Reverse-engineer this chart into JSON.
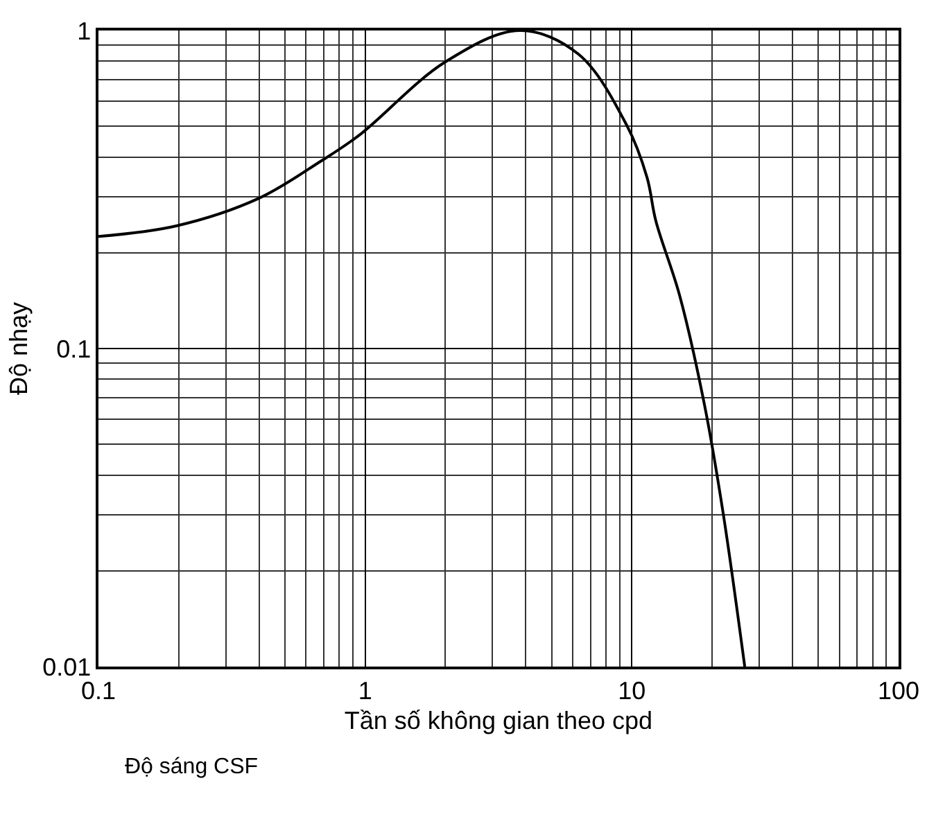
{
  "chart_data": {
    "type": "line",
    "xlabel": "Tần số không gian theo cpd",
    "ylabel": "Độ nhạy",
    "annotations": [
      "Độ sáng CSF"
    ],
    "log": "xy",
    "grid": true,
    "marker": "none",
    "line_style": "solid",
    "xlim": [
      0.1,
      100
    ],
    "xticks": [
      0.1,
      1,
      10,
      100
    ],
    "ylim": [
      0.01,
      1
    ],
    "yticks": [
      0.01,
      0.1,
      1
    ],
    "x": [
      0.1,
      0.196,
      0.397,
      0.678,
      0.948,
      1.995,
      3.8,
      6.3,
      9.55,
      11.4,
      12.3,
      15.1,
      18.7,
      22.0,
      26.5
    ],
    "series": [
      {
        "color": "#000000",
        "values": [
          0.225,
          0.243,
          0.296,
          0.387,
          0.468,
          0.796,
          1.0,
          0.843,
          0.505,
          0.345,
          0.252,
          0.147,
          0.0668,
          0.0303,
          0.01
        ]
      }
    ]
  }
}
